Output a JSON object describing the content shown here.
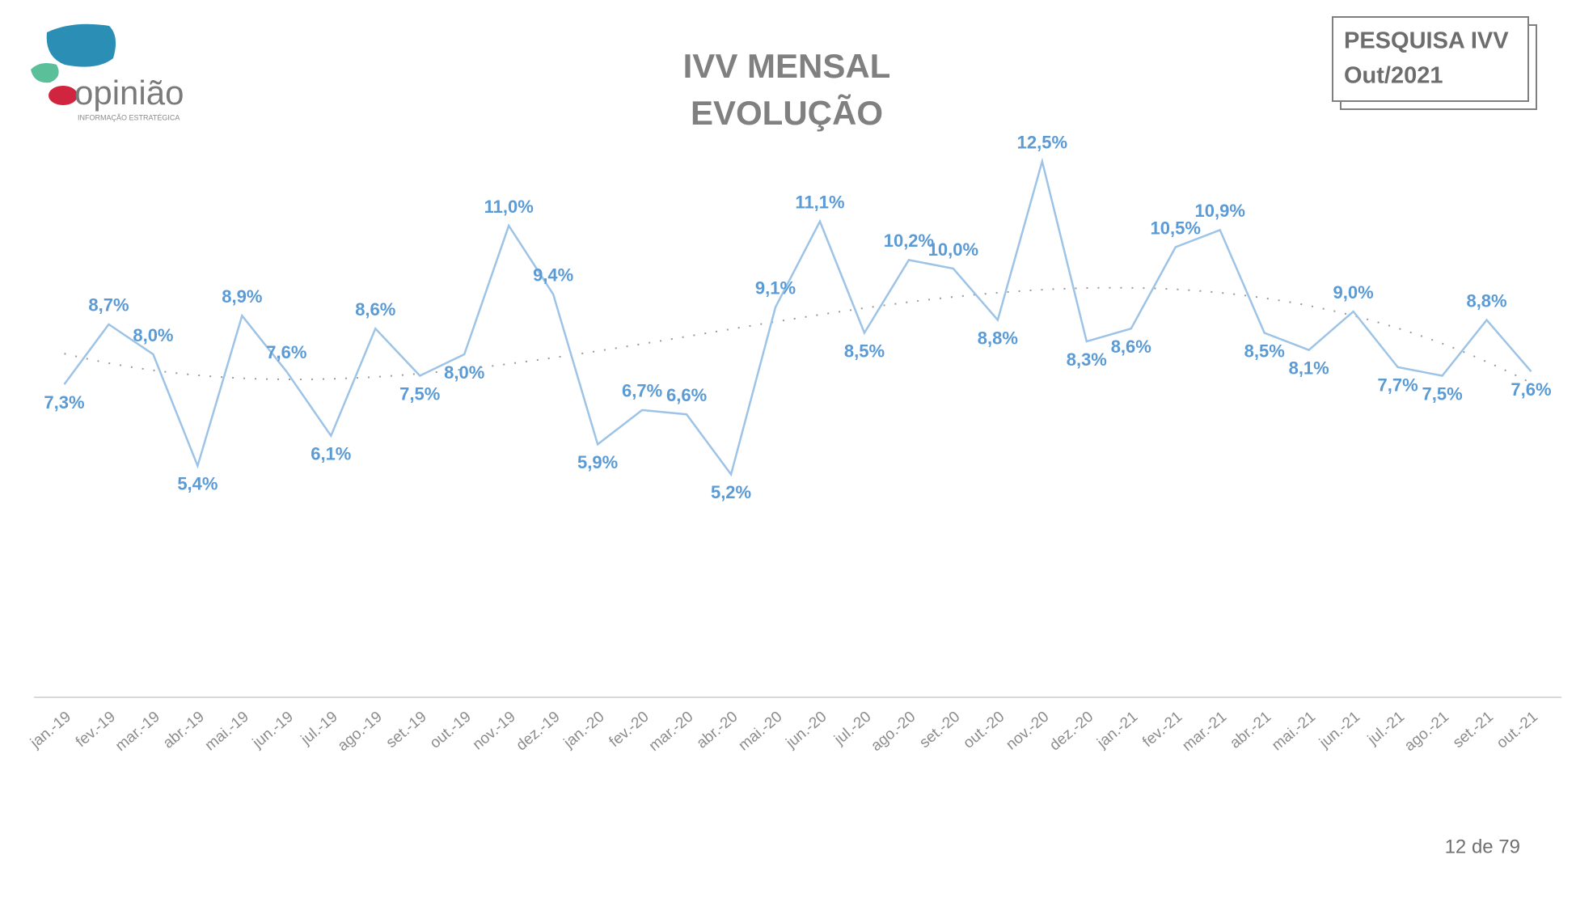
{
  "header": {
    "logo": "opinião",
    "tagline": "INFORMAÇÃO ESTRATÉGICA",
    "badge": [
      "PESQUISA IVV",
      "Out/2021"
    ]
  },
  "footer": {
    "page": "12 de 79"
  },
  "chart_data": {
    "type": "line",
    "title": [
      "IVV MENSAL",
      "EVOLUÇÃO"
    ],
    "categories": [
      "jan.-19",
      "fev.-19",
      "mar.-19",
      "abr.-19",
      "mai.-19",
      "jun.-19",
      "jul.-19",
      "ago.-19",
      "set.-19",
      "out.-19",
      "nov.-19",
      "dez.-19",
      "jan.-20",
      "fev.-20",
      "mar.-20",
      "abr.-20",
      "mai.-20",
      "jun.-20",
      "jul.-20",
      "ago.-20",
      "set.-20",
      "out.-20",
      "nov.-20",
      "dez.-20",
      "jan.-21",
      "fev.-21",
      "mar.-21",
      "abr.-21",
      "mai.-21",
      "jun.-21",
      "jul.-21",
      "ago.-21",
      "set.-21",
      "out.-21"
    ],
    "values": [
      7.3,
      8.7,
      8.0,
      5.4,
      8.9,
      7.6,
      6.1,
      8.6,
      7.5,
      8.0,
      11.0,
      9.4,
      5.9,
      6.7,
      6.6,
      5.2,
      9.1,
      11.1,
      8.5,
      10.2,
      10.0,
      8.8,
      12.5,
      8.3,
      8.6,
      10.5,
      10.9,
      8.5,
      8.1,
      9.0,
      7.7,
      7.5,
      8.8,
      7.6
    ],
    "value_labels": [
      "7,3%",
      "8,7%",
      "8,0%",
      "5,4%",
      "8,9%",
      "7,6%",
      "6,1%",
      "8,6%",
      "7,5%",
      "8,0%",
      "11,0%",
      "9,4%",
      "5,9%",
      "6,7%",
      "6,6%",
      "5,2%",
      "9,1%",
      "11,1%",
      "8,5%",
      "10,2%",
      "10,0%",
      "8,8%",
      "12,5%",
      "8,3%",
      "8,6%",
      "10,5%",
      "10,9%",
      "8,5%",
      "8,1%",
      "9,0%",
      "7,7%",
      "7,5%",
      "8,8%",
      "7,6%"
    ],
    "color": "#9dc3e6",
    "label_color": "#5b9bd5",
    "ylim": [
      0,
      14
    ],
    "trendline": true
  }
}
